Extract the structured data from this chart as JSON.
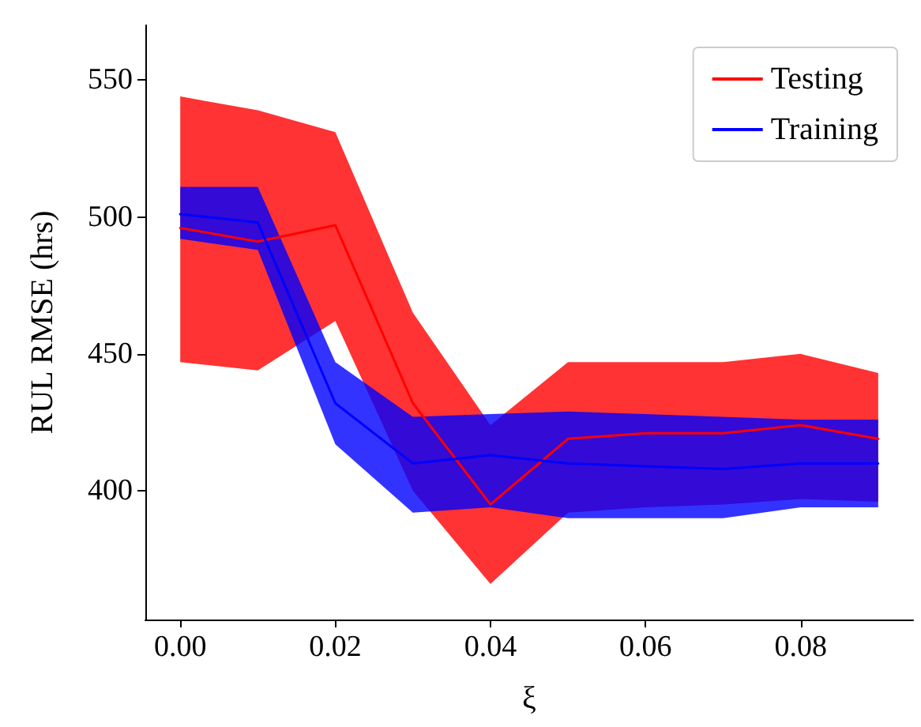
{
  "chart_data": {
    "type": "line",
    "xlabel": "ξ",
    "ylabel": "RUL RMSE (hrs)",
    "x": [
      0,
      0.01,
      0.02,
      0.03,
      0.04,
      0.05,
      0.06,
      0.07,
      0.08,
      0.09
    ],
    "series": [
      {
        "name": "Testing",
        "color": "#ff0000",
        "values": [
          496,
          491,
          497,
          432,
          395,
          419,
          421,
          421,
          424,
          419
        ],
        "lower": [
          447,
          444,
          462,
          400,
          366,
          392,
          394,
          395,
          397,
          396
        ],
        "upper": [
          544,
          539,
          531,
          465,
          424,
          447,
          447,
          447,
          450,
          443
        ]
      },
      {
        "name": "Training",
        "color": "#0000ff",
        "values": [
          501,
          498,
          432,
          410,
          413,
          410,
          409,
          408,
          410,
          410
        ],
        "lower": [
          492,
          488,
          417,
          392,
          394,
          390,
          390,
          390,
          394,
          394
        ],
        "upper": [
          511,
          511,
          447,
          427,
          428,
          429,
          428,
          427,
          426,
          426
        ]
      }
    ],
    "xlim": [
      -0.0045,
      0.0945
    ],
    "ylim": [
      353,
      570
    ],
    "xticks": [
      {
        "value": 0,
        "label": "0.00"
      },
      {
        "value": 0.02,
        "label": "0.02"
      },
      {
        "value": 0.04,
        "label": "0.04"
      },
      {
        "value": 0.06,
        "label": "0.06"
      },
      {
        "value": 0.08,
        "label": "0.08"
      }
    ],
    "yticks": [
      400,
      450,
      500,
      550
    ],
    "grid": false,
    "legend": "top right",
    "marker": "none",
    "line_style": "solid"
  }
}
